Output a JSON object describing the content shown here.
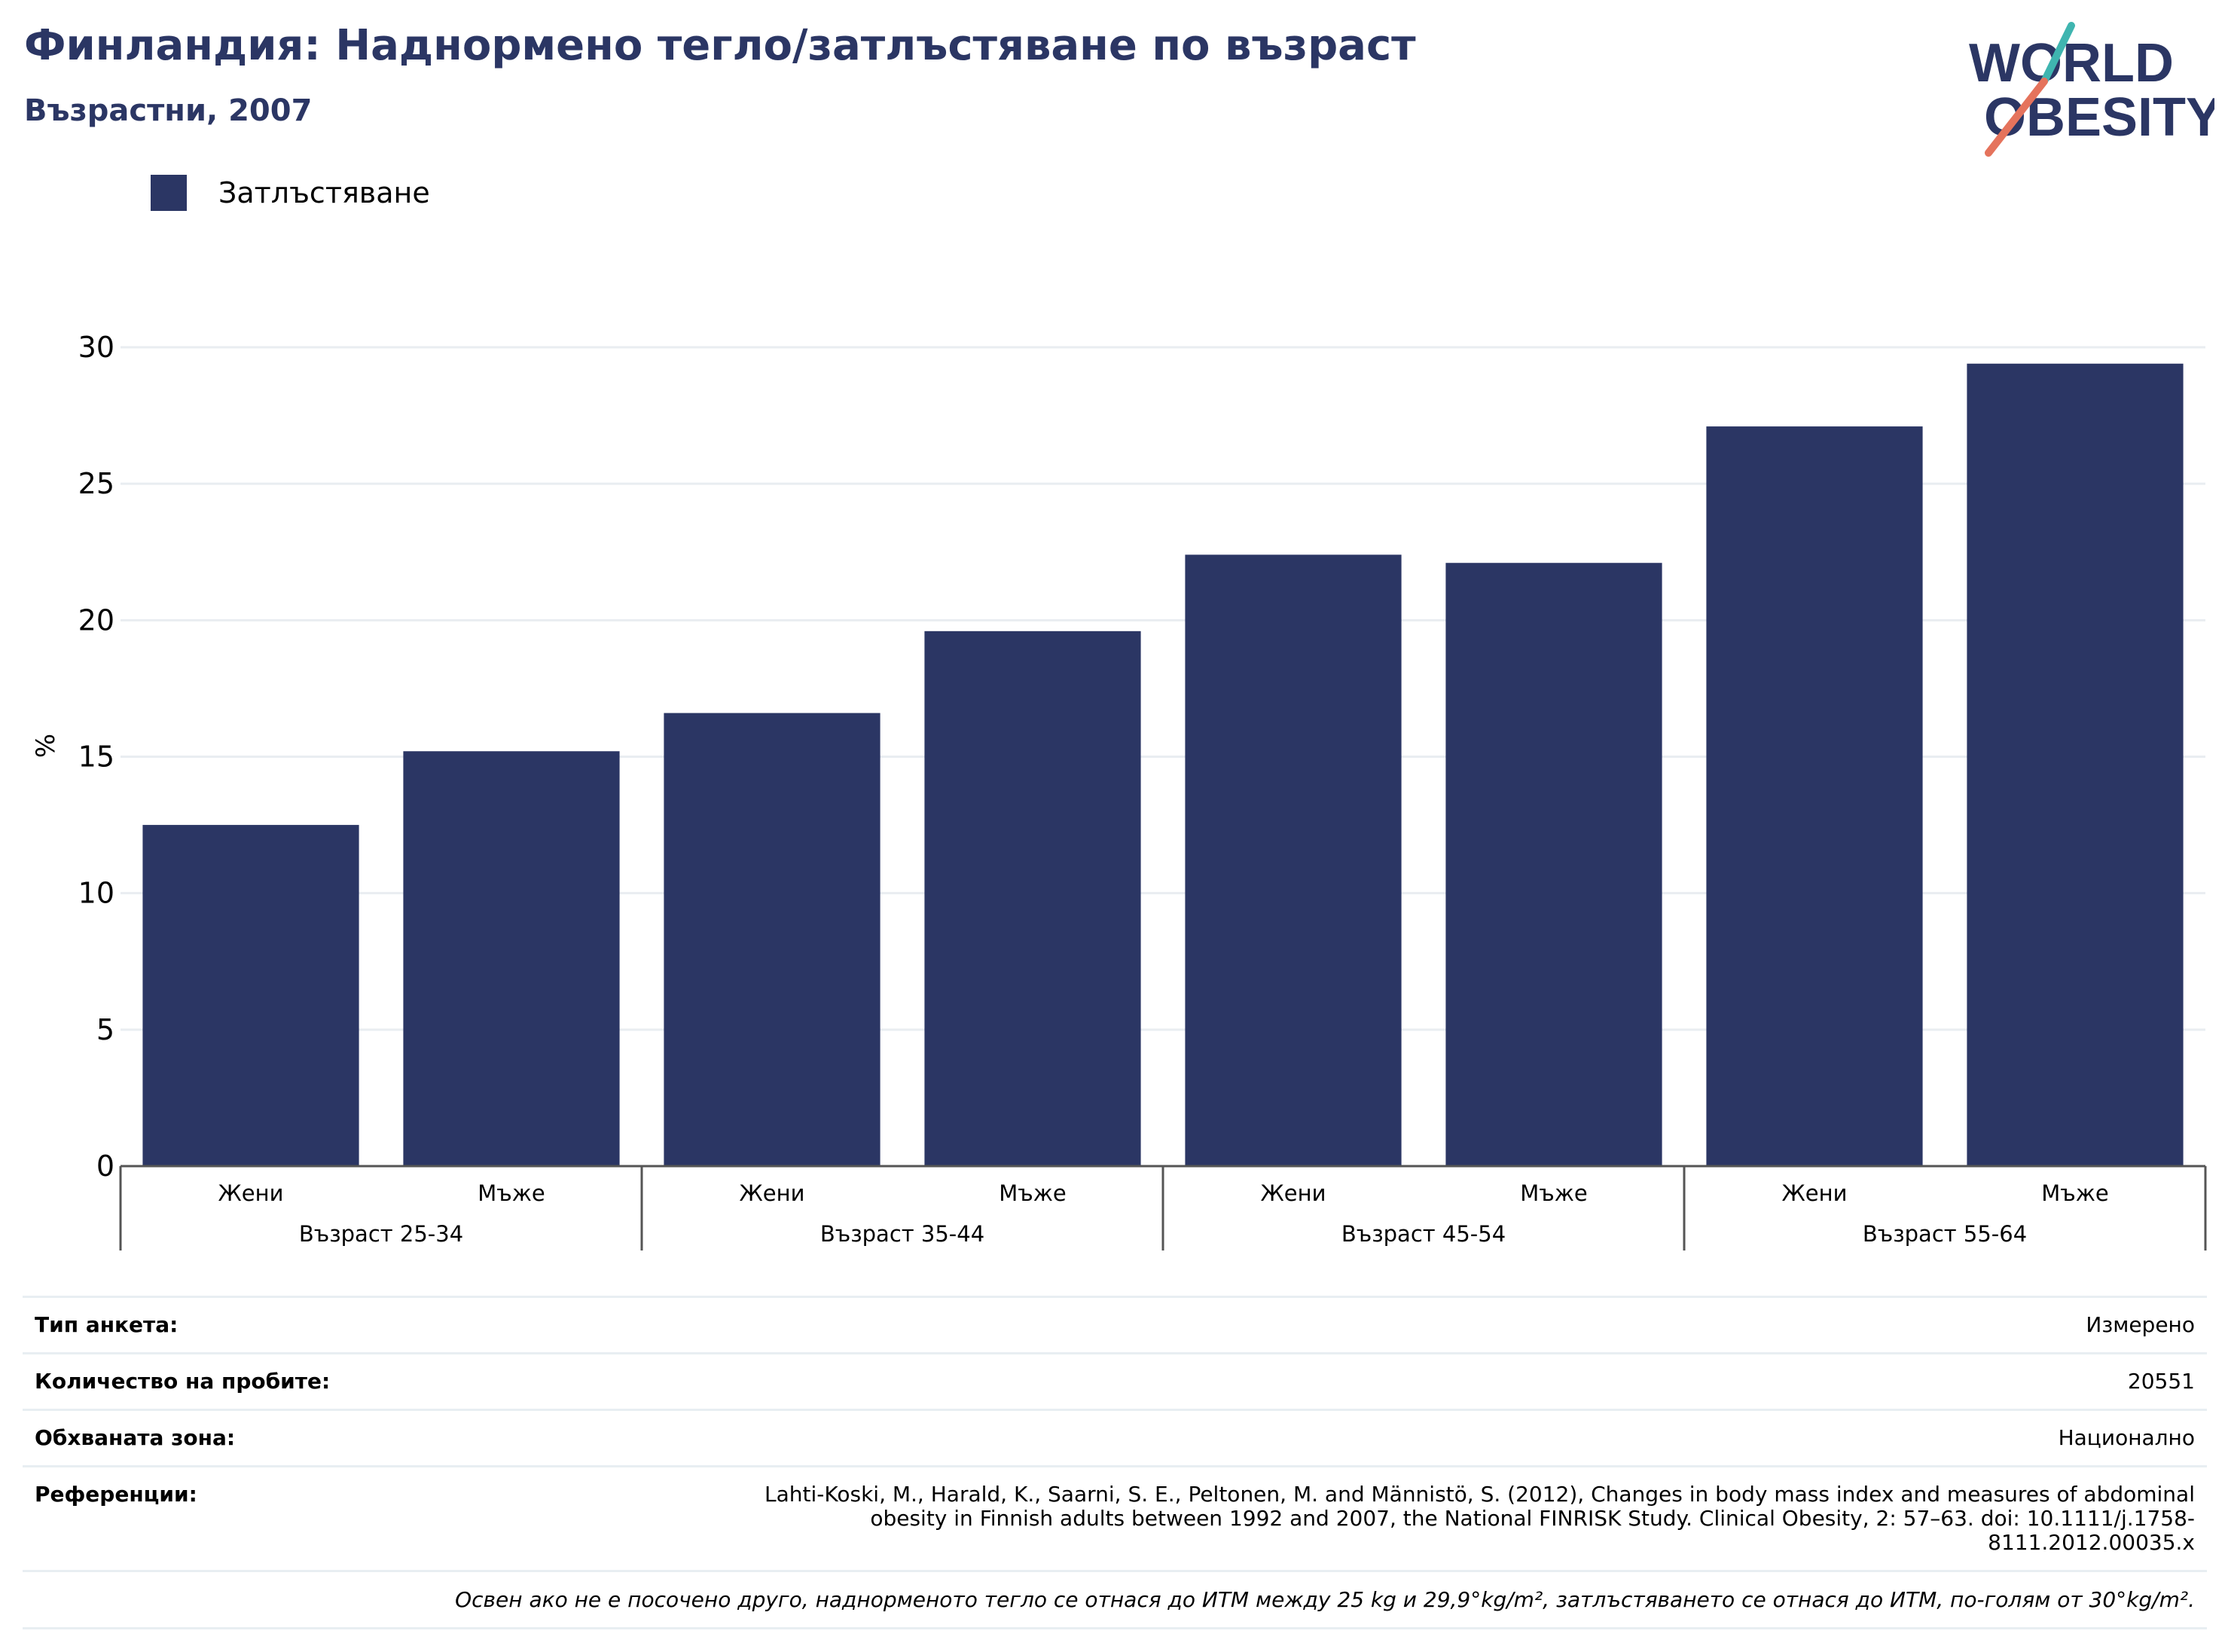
{
  "title": "Финландия: Наднормено тегло/затлъстяване по възраст",
  "subtitle": "Възрастни, 2007",
  "logo": {
    "line1": "WORLD",
    "line2": "OBESITY",
    "colors": {
      "text": "#2b3664",
      "teal": "#3fb5b0",
      "coral": "#e5735c"
    }
  },
  "legend": {
    "label": "Затлъстяване",
    "color": "#2b3664"
  },
  "chart_data": {
    "type": "bar",
    "ylabel": "%",
    "ylim": [
      0,
      30
    ],
    "yticks": [
      "0",
      "5",
      "10",
      "15",
      "20",
      "25",
      "30"
    ],
    "grid": true,
    "legend_position": "top-left",
    "groups": [
      "Възраст 25-34",
      "Възраст 35-44",
      "Възраст 45-54",
      "Възраст 55-64"
    ],
    "categories": [
      "Жени",
      "Мъже",
      "Жени",
      "Мъже",
      "Жени",
      "Мъже",
      "Жени",
      "Мъже"
    ],
    "series": [
      {
        "name": "Затлъстяване",
        "values": [
          12.5,
          15.2,
          16.6,
          19.6,
          22.4,
          22.1,
          27.1,
          29.4
        ]
      }
    ],
    "bar_color": "#2b3664"
  },
  "info": {
    "survey_label": "Тип анкета:",
    "survey_value": "Измерено",
    "sample_label": "Количество на пробите:",
    "sample_value": "20551",
    "area_label": "Обхваната зона:",
    "area_value": "Национално",
    "ref_label": "Референции:",
    "ref_value": "Lahti-Koski, M., Harald, K., Saarni, S. E., Peltonen, M. and Männistö, S. (2012), Changes in body mass index and measures of abdominal obesity in Finnish adults between 1992 and 2007, the National FINRISK Study. Clinical Obesity, 2: 57–63. doi: 10.1111/j.1758-8111.2012.00035.x",
    "footnote": "Освен ако не е посочено друго, наднорменото тегло се отнася до ИТМ между 25 kg и 29,9°kg/m², затлъстяването се отнася до ИТМ, по-голям от 30°kg/m²."
  }
}
